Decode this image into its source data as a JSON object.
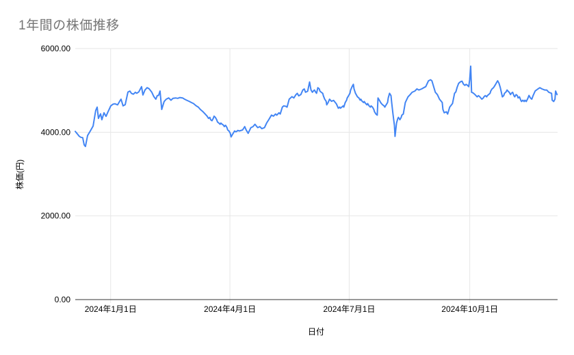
{
  "chart": {
    "title": "1年間の株価推移",
    "x_axis_title": "日付",
    "y_axis_title": "株価(円)",
    "y_ticks": [
      {
        "label": "0.00",
        "value": 0
      },
      {
        "label": "2000.00",
        "value": 2000
      },
      {
        "label": "4000.00",
        "value": 4000
      },
      {
        "label": "6000.00",
        "value": 6000
      }
    ],
    "x_ticks": [
      {
        "label": "2024年1月1日",
        "day": 27
      },
      {
        "label": "2024年4月1日",
        "day": 118
      },
      {
        "label": "2024年7月1日",
        "day": 209
      },
      {
        "label": "2024年10月1日",
        "day": 301
      }
    ],
    "colors": {
      "line": "#4285f4",
      "gridline": "#e6e6e6",
      "axis_line": "#333333",
      "title": "#757575",
      "tick_label": "#000000",
      "axis_title": "#000000",
      "background": "#ffffff"
    }
  },
  "chart_data": {
    "type": "line",
    "title": "1年間の株価推移",
    "xlabel": "日付",
    "ylabel": "株価(円)",
    "ylim": [
      0,
      6000
    ],
    "x_range_days": 368,
    "grid": true,
    "legend": "none",
    "x_tick_labels": [
      "2024年1月1日",
      "2024年4月1日",
      "2024年7月1日",
      "2024年10月1日"
    ],
    "y_tick_labels": [
      "0.00",
      "2000.00",
      "4000.00",
      "6000.00"
    ],
    "series": [
      {
        "name": "株価(円)",
        "color": "#4285f4",
        "points": [
          [
            0,
            4020
          ],
          [
            1.6,
            3960
          ],
          [
            3,
            3905
          ],
          [
            4.2,
            3880
          ],
          [
            5.7,
            3870
          ],
          [
            6.8,
            3700
          ],
          [
            7.8,
            3660
          ],
          [
            9.4,
            3920
          ],
          [
            11.5,
            4030
          ],
          [
            13.6,
            4150
          ],
          [
            15.6,
            4520
          ],
          [
            16.7,
            4600
          ],
          [
            17.7,
            4330
          ],
          [
            19.3,
            4440
          ],
          [
            20.3,
            4300
          ],
          [
            21.9,
            4465
          ],
          [
            23.5,
            4380
          ],
          [
            25,
            4490
          ],
          [
            27.1,
            4630
          ],
          [
            28.7,
            4670
          ],
          [
            30.2,
            4680
          ],
          [
            32.3,
            4655
          ],
          [
            33.9,
            4740
          ],
          [
            34.9,
            4790
          ],
          [
            36.5,
            4630
          ],
          [
            38.1,
            4660
          ],
          [
            40.2,
            4960
          ],
          [
            41.7,
            4985
          ],
          [
            42.8,
            4930
          ],
          [
            44.3,
            4910
          ],
          [
            45.9,
            4955
          ],
          [
            46.9,
            4930
          ],
          [
            48.5,
            4965
          ],
          [
            50.6,
            5090
          ],
          [
            51.6,
            4890
          ],
          [
            53.2,
            5010
          ],
          [
            54.8,
            5065
          ],
          [
            56.3,
            5040
          ],
          [
            58.4,
            4955
          ],
          [
            60,
            4850
          ],
          [
            61.5,
            4790
          ],
          [
            62.6,
            4875
          ],
          [
            63.6,
            4880
          ],
          [
            64.7,
            4985
          ],
          [
            66,
            4545
          ],
          [
            67.8,
            4735
          ],
          [
            69.4,
            4790
          ],
          [
            71.3,
            4820
          ],
          [
            73,
            4765
          ],
          [
            74.6,
            4810
          ],
          [
            76.6,
            4820
          ],
          [
            78.2,
            4810
          ],
          [
            79.8,
            4830
          ],
          [
            81.9,
            4820
          ],
          [
            83.4,
            4790
          ],
          [
            85,
            4765
          ],
          [
            87.1,
            4735
          ],
          [
            88.6,
            4710
          ],
          [
            90.2,
            4685
          ],
          [
            92.3,
            4630
          ],
          [
            93.9,
            4600
          ],
          [
            95.4,
            4545
          ],
          [
            97.5,
            4490
          ],
          [
            99.1,
            4435
          ],
          [
            100.6,
            4385
          ],
          [
            101.7,
            4330
          ],
          [
            102.7,
            4355
          ],
          [
            103.3,
            4300
          ],
          [
            104.3,
            4275
          ],
          [
            105.3,
            4330
          ],
          [
            105.9,
            4385
          ],
          [
            106.9,
            4355
          ],
          [
            107.9,
            4300
          ],
          [
            108.5,
            4245
          ],
          [
            109.5,
            4220
          ],
          [
            110.5,
            4190
          ],
          [
            111.1,
            4220
          ],
          [
            112.1,
            4190
          ],
          [
            113.2,
            4165
          ],
          [
            113.7,
            4135
          ],
          [
            114.7,
            4165
          ],
          [
            115.8,
            4110
          ],
          [
            116.3,
            4055
          ],
          [
            117.3,
            4030
          ],
          [
            118.3,
            3975
          ],
          [
            118.9,
            3890
          ],
          [
            119.9,
            3945
          ],
          [
            121,
            4000
          ],
          [
            121.5,
            4030
          ],
          [
            122.5,
            4010
          ],
          [
            123.6,
            4030
          ],
          [
            124.1,
            4045
          ],
          [
            125.1,
            4030
          ],
          [
            127.7,
            4055
          ],
          [
            129.3,
            4135
          ],
          [
            130.4,
            4055
          ],
          [
            131.9,
            3975
          ],
          [
            134,
            4110
          ],
          [
            135.6,
            4135
          ],
          [
            137.1,
            4190
          ],
          [
            139.2,
            4110
          ],
          [
            140.8,
            4135
          ],
          [
            142.4,
            4085
          ],
          [
            144.4,
            4110
          ],
          [
            146,
            4220
          ],
          [
            147.6,
            4300
          ],
          [
            149.7,
            4410
          ],
          [
            151.2,
            4385
          ],
          [
            152.8,
            4435
          ],
          [
            153.8,
            4410
          ],
          [
            155.4,
            4465
          ],
          [
            156.4,
            4435
          ],
          [
            158,
            4600
          ],
          [
            159,
            4630
          ],
          [
            160.6,
            4620
          ],
          [
            161.6,
            4600
          ],
          [
            163.2,
            4790
          ],
          [
            165.3,
            4850
          ],
          [
            166.8,
            4820
          ],
          [
            168.4,
            4900
          ],
          [
            169.4,
            4930
          ],
          [
            170.5,
            4870
          ],
          [
            172.1,
            4900
          ],
          [
            173.6,
            5010
          ],
          [
            174.7,
            5035
          ],
          [
            175.7,
            4955
          ],
          [
            177.3,
            4980
          ],
          [
            178.8,
            5200
          ],
          [
            179.9,
            5010
          ],
          [
            180.9,
            4955
          ],
          [
            181.5,
            4980
          ],
          [
            182.5,
            5010
          ],
          [
            183.5,
            4955
          ],
          [
            184.1,
            4930
          ],
          [
            185.1,
            5065
          ],
          [
            186.2,
            5035
          ],
          [
            186.7,
            4980
          ],
          [
            187.7,
            4955
          ],
          [
            188.8,
            4930
          ],
          [
            189.3,
            4870
          ],
          [
            190.3,
            4790
          ],
          [
            191.4,
            4740
          ],
          [
            191.9,
            4655
          ],
          [
            192.9,
            4710
          ],
          [
            194,
            4790
          ],
          [
            195.5,
            4740
          ],
          [
            197.1,
            4760
          ],
          [
            199.2,
            4680
          ],
          [
            200.7,
            4575
          ],
          [
            201.8,
            4600
          ],
          [
            202.3,
            4575
          ],
          [
            203.3,
            4600
          ],
          [
            204.4,
            4630
          ],
          [
            204.9,
            4600
          ],
          [
            206,
            4710
          ],
          [
            207,
            4765
          ],
          [
            207.5,
            4820
          ],
          [
            208.6,
            4875
          ],
          [
            209.6,
            4930
          ],
          [
            210.1,
            5010
          ],
          [
            211.2,
            5090
          ],
          [
            212.2,
            5145
          ],
          [
            212.7,
            5035
          ],
          [
            213.8,
            4930
          ],
          [
            214.8,
            4875
          ],
          [
            215.3,
            4845
          ],
          [
            216.4,
            4820
          ],
          [
            217.4,
            4765
          ],
          [
            217.9,
            4790
          ],
          [
            219,
            4735
          ],
          [
            220,
            4710
          ],
          [
            220.5,
            4735
          ],
          [
            221.6,
            4685
          ],
          [
            222.6,
            4655
          ],
          [
            223.1,
            4685
          ],
          [
            224.2,
            4630
          ],
          [
            225.2,
            4600
          ],
          [
            225.7,
            4630
          ],
          [
            226.8,
            4600
          ],
          [
            227.8,
            4545
          ],
          [
            228.3,
            4490
          ],
          [
            229.4,
            4435
          ],
          [
            230.4,
            4410
          ],
          [
            231,
            4820
          ],
          [
            232,
            4765
          ],
          [
            233,
            4710
          ],
          [
            233.6,
            4685
          ],
          [
            234.6,
            4655
          ],
          [
            235.6,
            4630
          ],
          [
            236.2,
            4600
          ],
          [
            237.2,
            4655
          ],
          [
            238.3,
            4710
          ],
          [
            238.8,
            4820
          ],
          [
            239.8,
            4930
          ],
          [
            240.9,
            4875
          ],
          [
            241.4,
            4710
          ],
          [
            242.4,
            4435
          ],
          [
            243.5,
            4165
          ],
          [
            244,
            3900
          ],
          [
            245.1,
            4220
          ],
          [
            246.1,
            4330
          ],
          [
            246.6,
            4355
          ],
          [
            247.7,
            4300
          ],
          [
            248.7,
            4355
          ],
          [
            249.2,
            4410
          ],
          [
            250.3,
            4435
          ],
          [
            251.8,
            4710
          ],
          [
            253.9,
            4845
          ],
          [
            255.5,
            4900
          ],
          [
            257,
            4955
          ],
          [
            259.1,
            4985
          ],
          [
            260.7,
            5035
          ],
          [
            262.2,
            5010
          ],
          [
            264.3,
            5035
          ],
          [
            265.9,
            5065
          ],
          [
            267.4,
            5090
          ],
          [
            269.5,
            5230
          ],
          [
            271.1,
            5255
          ],
          [
            272.1,
            5230
          ],
          [
            273.7,
            5065
          ],
          [
            274.7,
            4955
          ],
          [
            276.3,
            4900
          ],
          [
            277.9,
            4790
          ],
          [
            280,
            4710
          ],
          [
            280.5,
            4545
          ],
          [
            281.5,
            4465
          ],
          [
            283.1,
            4490
          ],
          [
            284.1,
            4435
          ],
          [
            285.7,
            4600
          ],
          [
            287.8,
            4685
          ],
          [
            289.4,
            4930
          ],
          [
            290.4,
            4965
          ],
          [
            291.4,
            5080
          ],
          [
            292.5,
            5170
          ],
          [
            294.1,
            5210
          ],
          [
            295.1,
            5220
          ],
          [
            296.2,
            5150
          ],
          [
            297.2,
            5120
          ],
          [
            298.2,
            5145
          ],
          [
            299.3,
            5120
          ],
          [
            300.2,
            5090
          ],
          [
            300.9,
            5255
          ],
          [
            301.7,
            5580
          ],
          [
            302.4,
            4955
          ],
          [
            303.5,
            4940
          ],
          [
            305,
            4900
          ],
          [
            306.6,
            4845
          ],
          [
            307.6,
            4875
          ],
          [
            308.7,
            4845
          ],
          [
            310.2,
            4790
          ],
          [
            311.3,
            4820
          ],
          [
            311.8,
            4845
          ],
          [
            312.8,
            4875
          ],
          [
            313.9,
            4845
          ],
          [
            314.4,
            4875
          ],
          [
            315.4,
            4900
          ],
          [
            316.5,
            4930
          ],
          [
            317,
            4985
          ],
          [
            318,
            5035
          ],
          [
            319.1,
            5065
          ],
          [
            319.6,
            5090
          ],
          [
            320.7,
            5145
          ],
          [
            321.7,
            5200
          ],
          [
            322.3,
            5230
          ],
          [
            323.3,
            5170
          ],
          [
            324.3,
            5065
          ],
          [
            325.9,
            4845
          ],
          [
            326.9,
            4875
          ],
          [
            327.5,
            4930
          ],
          [
            328.5,
            4955
          ],
          [
            329.5,
            5010
          ],
          [
            330.1,
            4985
          ],
          [
            331.1,
            4955
          ],
          [
            332.1,
            4900
          ],
          [
            332.7,
            4930
          ],
          [
            333.7,
            4955
          ],
          [
            334.7,
            4875
          ],
          [
            335.3,
            4845
          ],
          [
            336.3,
            4900
          ],
          [
            337.3,
            4875
          ],
          [
            337.9,
            4820
          ],
          [
            338.9,
            4845
          ],
          [
            339.9,
            4765
          ],
          [
            340.5,
            4735
          ],
          [
            341.5,
            4765
          ],
          [
            342.5,
            4735
          ],
          [
            343.1,
            4765
          ],
          [
            344.1,
            4735
          ],
          [
            345.2,
            4800
          ],
          [
            346.2,
            4880
          ],
          [
            347.3,
            4820
          ],
          [
            348.3,
            4790
          ],
          [
            349.3,
            4875
          ],
          [
            350.9,
            4985
          ],
          [
            353,
            5035
          ],
          [
            354.5,
            5065
          ],
          [
            356.1,
            5035
          ],
          [
            358.2,
            5010
          ],
          [
            359.7,
            5010
          ],
          [
            361.3,
            4955
          ],
          [
            363.4,
            4930
          ],
          [
            363.9,
            4765
          ],
          [
            365,
            4735
          ],
          [
            366,
            4790
          ],
          [
            366.5,
            4985
          ],
          [
            367.6,
            4900
          ]
        ]
      }
    ]
  }
}
